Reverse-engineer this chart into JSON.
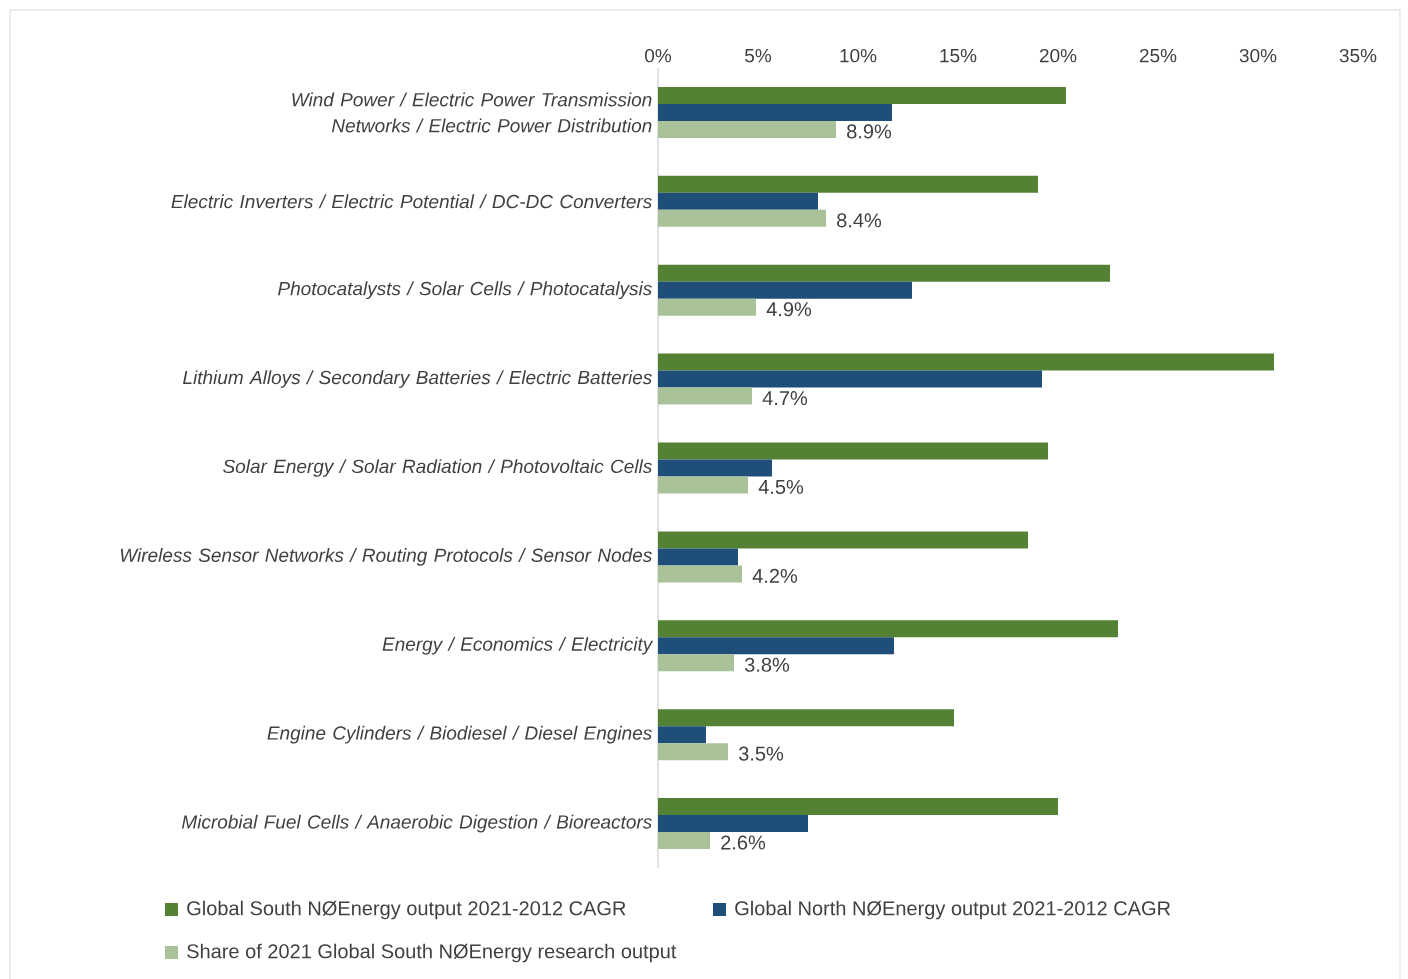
{
  "chart_data": {
    "type": "bar",
    "orientation": "horizontal",
    "categories": [
      "Wind Power / Electric Power Transmission Networks / Electric Power Distribution",
      "Electric Inverters / Electric Potential / DC-DC Converters",
      "Photocatalysts / Solar Cells / Photocatalysis",
      "Lithium Alloys / Secondary Batteries / Electric Batteries",
      "Solar Energy / Solar Radiation / Photovoltaic Cells",
      "Wireless Sensor Networks / Routing Protocols / Sensor Nodes",
      "Energy / Economics / Electricity",
      "Engine Cylinders / Biodiesel / Diesel Engines",
      "Microbial Fuel Cells / Anaerobic Digestion / Bioreactors"
    ],
    "series": [
      {
        "name": "Global South NØEnergy output 2021-2012 CAGR",
        "color": "#548235",
        "values": [
          20.4,
          19.0,
          22.6,
          30.8,
          19.5,
          18.5,
          23.0,
          14.8,
          20.0
        ]
      },
      {
        "name": "Global North NØEnergy output 2021-2012 CAGR",
        "color": "#1f4e79",
        "values": [
          11.7,
          8.0,
          12.7,
          19.2,
          5.7,
          4.0,
          11.8,
          2.4,
          7.5
        ]
      },
      {
        "name": "Share of 2021 Global South NØEnergy research output",
        "color": "#a9c29a",
        "values": [
          8.9,
          8.4,
          4.9,
          4.7,
          4.5,
          4.2,
          3.8,
          3.5,
          2.6
        ],
        "value_labels": [
          "8.9%",
          "8.4%",
          "4.9%",
          "4.7%",
          "4.5%",
          "4.2%",
          "3.8%",
          "3.5%",
          "2.6%"
        ]
      }
    ],
    "xlim": [
      0,
      35
    ],
    "xticks": [
      {
        "value": 0,
        "label": "0%"
      },
      {
        "value": 5,
        "label": "5%"
      },
      {
        "value": 10,
        "label": "10%"
      },
      {
        "value": 15,
        "label": "15%"
      },
      {
        "value": 20,
        "label": "20%"
      },
      {
        "value": 25,
        "label": "25%"
      },
      {
        "value": 30,
        "label": "30%"
      },
      {
        "value": 35,
        "label": "35%"
      }
    ],
    "legend": "bottom"
  }
}
